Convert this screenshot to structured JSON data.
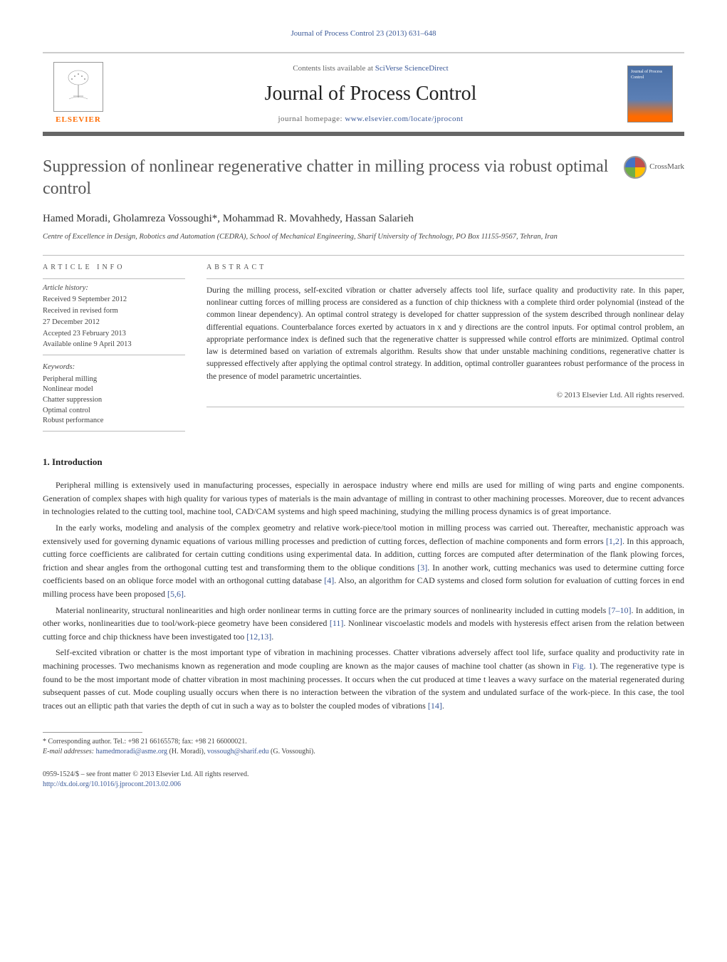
{
  "header": {
    "citation": "Journal of Process Control 23 (2013) 631–648",
    "contents_prefix": "Contents lists available at ",
    "contents_link": "SciVerse ScienceDirect",
    "journal_name": "Journal of Process Control",
    "homepage_prefix": "journal homepage: ",
    "homepage_url": "www.elsevier.com/locate/jprocont",
    "elsevier_label": "ELSEVIER",
    "cover_text": "Journal of Process Control"
  },
  "crossmark_label": "CrossMark",
  "title": "Suppression of nonlinear regenerative chatter in milling process via robust optimal control",
  "authors": "Hamed Moradi, Gholamreza Vossoughi*, Mohammad R. Movahhedy, Hassan Salarieh",
  "affiliation": "Centre of Excellence in Design, Robotics and Automation (CEDRA), School of Mechanical Engineering, Sharif University of Technology, PO Box 11155-9567, Tehran, Iran",
  "article_info": {
    "label": "ARTICLE INFO",
    "history_label": "Article history:",
    "history": [
      "Received 9 September 2012",
      "Received in revised form",
      "27 December 2012",
      "Accepted 23 February 2013",
      "Available online 9 April 2013"
    ],
    "keywords_label": "Keywords:",
    "keywords": [
      "Peripheral milling",
      "Nonlinear model",
      "Chatter suppression",
      "Optimal control",
      "Robust performance"
    ]
  },
  "abstract": {
    "label": "ABSTRACT",
    "text": "During the milling process, self-excited vibration or chatter adversely affects tool life, surface quality and productivity rate. In this paper, nonlinear cutting forces of milling process are considered as a function of chip thickness with a complete third order polynomial (instead of the common linear dependency). An optimal control strategy is developed for chatter suppression of the system described through nonlinear delay differential equations. Counterbalance forces exerted by actuators in x and y directions are the control inputs. For optimal control problem, an appropriate performance index is defined such that the regenerative chatter is suppressed while control efforts are minimized. Optimal control law is determined based on variation of extremals algorithm. Results show that under unstable machining conditions, regenerative chatter is suppressed effectively after applying the optimal control strategy. In addition, optimal controller guarantees robust performance of the process in the presence of model parametric uncertainties.",
    "copyright": "© 2013 Elsevier Ltd. All rights reserved."
  },
  "sections": {
    "intro_heading": "1.  Introduction",
    "paragraphs": [
      "Peripheral milling is extensively used in manufacturing processes, especially in aerospace industry where end mills are used for milling of wing parts and engine components. Generation of complex shapes with high quality for various types of materials is the main advantage of milling in contrast to other machining processes. Moreover, due to recent advances in technologies related to the cutting tool, machine tool, CAD/CAM systems and high speed machining, studying the milling process dynamics is of great importance.",
      "In the early works, modeling and analysis of the complex geometry and relative work-piece/tool motion in milling process was carried out. Thereafter, mechanistic approach was extensively used for governing dynamic equations of various milling processes and prediction of cutting forces, deflection of machine components and form errors [1,2]. In this approach, cutting force coefficients are calibrated for certain cutting conditions using experimental data. In addition, cutting forces are computed after determination of the flank plowing forces, friction and shear angles from the orthogonal cutting test and transforming them to the oblique conditions [3]. In another work, cutting mechanics was used to determine cutting force coefficients based on an oblique force model with an orthogonal cutting database [4]. Also, an algorithm for CAD systems and closed form solution for evaluation of cutting forces in end milling process have been proposed [5,6].",
      "Material nonlinearity, structural nonlinearities and high order nonlinear terms in cutting force are the primary sources of nonlinearity included in cutting models [7–10]. In addition, in other works, nonlinearities due to tool/work-piece geometry have been considered [11]. Nonlinear viscoelastic models and models with hysteresis effect arisen from the relation between cutting force and chip thickness have been investigated too [12,13].",
      "Self-excited vibration or chatter is the most important type of vibration in machining processes. Chatter vibrations adversely affect tool life, surface quality and productivity rate in machining processes. Two mechanisms known as regeneration and mode coupling are known as the major causes of machine tool chatter (as shown in Fig. 1). The regenerative type is found to be the most important mode of chatter vibration in most machining processes. It occurs when the cut produced at time t leaves a wavy surface on the material regenerated during subsequent passes of cut. Mode coupling usually occurs when there is no interaction between the vibration of the system and undulated surface of the work-piece. In this case, the tool traces out an elliptic path that varies the depth of cut in such a way as to bolster the coupled modes of vibrations [14]."
    ]
  },
  "footnote": {
    "corr": "* Corresponding author. Tel.: +98 21 66165578; fax: +98 21 66000021.",
    "emails_label": "E-mail addresses: ",
    "email1": "hamedmoradi@asme.org",
    "email1_who": " (H. Moradi), ",
    "email2": "vossough@sharif.edu",
    "email2_who": " (G. Vossoughi)."
  },
  "footer": {
    "line1": "0959-1524/$ – see front matter © 2013 Elsevier Ltd. All rights reserved.",
    "doi": "http://dx.doi.org/10.1016/j.jprocont.2013.02.006"
  },
  "colors": {
    "link": "#3b5998",
    "elsevier_orange": "#ff6b00",
    "text": "#333333",
    "rule": "#bbbbbb"
  }
}
